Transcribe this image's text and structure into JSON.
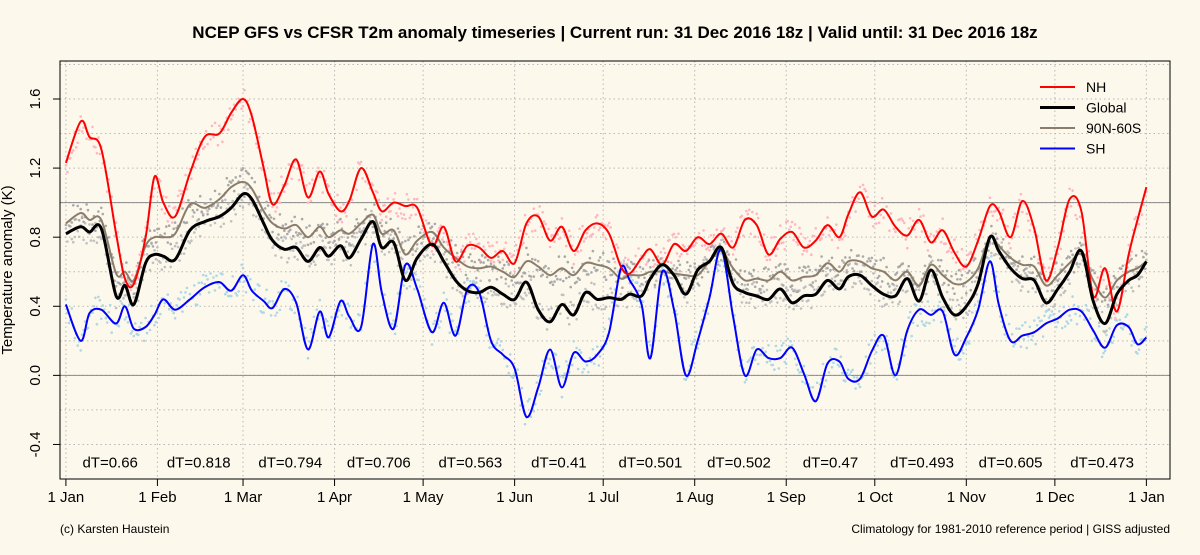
{
  "chart_data": {
    "type": "line",
    "title": "NCEP GFS vs CFSR T2m anomaly timeseries | Current run: 31 Dec 2016 18z | Valid until: 31 Dec 2016 18z",
    "ylabel": "Temperature anomaly (K)",
    "xlabel": "",
    "x_unit": "day of year 2016 (day 0 = 1 Jan 2016, day 366 = 1 Jan 2017)",
    "xlim": [
      -2,
      374
    ],
    "ylim": [
      -0.6,
      1.82
    ],
    "x_ticks": [
      {
        "day": 0,
        "label": "1 Jan"
      },
      {
        "day": 31,
        "label": "1 Feb"
      },
      {
        "day": 60,
        "label": "1 Mar"
      },
      {
        "day": 91,
        "label": "1 Apr"
      },
      {
        "day": 121,
        "label": "1 May"
      },
      {
        "day": 152,
        "label": "1 Jun"
      },
      {
        "day": 182,
        "label": "1 Jul"
      },
      {
        "day": 213,
        "label": "1 Aug"
      },
      {
        "day": 244,
        "label": "1 Sep"
      },
      {
        "day": 274,
        "label": "1 Oct"
      },
      {
        "day": 305,
        "label": "1 Nov"
      },
      {
        "day": 335,
        "label": "1 Dec"
      },
      {
        "day": 366,
        "label": "1 Jan"
      }
    ],
    "y_ticks": [
      {
        "value": -0.4,
        "label": "-0.4"
      },
      {
        "value": 0.0,
        "label": "0.0"
      },
      {
        "value": 0.4,
        "label": "0.4"
      },
      {
        "value": 0.8,
        "label": "0.8"
      },
      {
        "value": 1.2,
        "label": "1.2"
      },
      {
        "value": 1.6,
        "label": "1.6"
      }
    ],
    "grid": true,
    "reference_lines": [
      0.0,
      1.0
    ],
    "legend_position": "top-right",
    "series": [
      {
        "name": "NH",
        "color": "#ff0000",
        "dot_color": "#ffb6c1",
        "x": [
          0,
          5,
          8,
          12,
          17,
          20,
          23,
          27,
          30,
          33,
          37,
          42,
          47,
          52,
          56,
          60,
          63,
          67,
          70,
          74,
          78,
          82,
          86,
          89,
          93,
          96,
          100,
          104,
          107,
          111,
          115,
          119,
          124,
          128,
          132,
          136,
          140,
          144,
          148,
          152,
          156,
          160,
          164,
          168,
          172,
          176,
          180,
          184,
          188,
          191,
          195,
          198,
          202,
          206,
          210,
          214,
          218,
          222,
          226,
          230,
          234,
          238,
          242,
          246,
          250,
          254,
          258,
          262,
          265,
          269,
          273,
          277,
          281,
          285,
          289,
          293,
          297,
          301,
          305,
          309,
          313,
          316,
          320,
          324,
          328,
          332,
          336,
          340,
          344,
          348,
          352,
          356,
          360,
          363,
          366
        ],
        "y": [
          1.23,
          1.47,
          1.38,
          1.31,
          0.82,
          0.56,
          0.53,
          0.8,
          1.15,
          1.0,
          0.92,
          1.17,
          1.38,
          1.4,
          1.52,
          1.6,
          1.5,
          1.2,
          0.99,
          1.1,
          1.25,
          1.03,
          1.18,
          1.05,
          0.95,
          1.01,
          1.2,
          1.06,
          0.95,
          1.0,
          0.98,
          0.97,
          0.75,
          0.86,
          0.66,
          0.75,
          0.74,
          0.68,
          0.72,
          0.65,
          0.88,
          0.92,
          0.78,
          0.86,
          0.72,
          0.84,
          0.88,
          0.82,
          0.63,
          0.59,
          0.68,
          0.73,
          0.64,
          0.76,
          0.72,
          0.8,
          0.76,
          0.82,
          0.74,
          0.9,
          0.87,
          0.7,
          0.79,
          0.83,
          0.74,
          0.78,
          0.87,
          0.8,
          0.93,
          1.06,
          0.92,
          0.96,
          0.86,
          0.81,
          0.9,
          0.77,
          0.84,
          0.71,
          0.63,
          0.78,
          0.98,
          0.95,
          0.8,
          1.01,
          0.85,
          0.55,
          0.74,
          1.02,
          0.95,
          0.46,
          0.62,
          0.37,
          0.7,
          0.9,
          1.09
        ]
      },
      {
        "name": "Global",
        "color": "#000000",
        "dot_color": "#c0c0c0",
        "x": [
          0,
          5,
          8,
          12,
          17,
          20,
          23,
          27,
          30,
          33,
          37,
          42,
          47,
          52,
          56,
          60,
          63,
          67,
          70,
          74,
          78,
          82,
          86,
          89,
          93,
          96,
          100,
          104,
          107,
          111,
          115,
          119,
          124,
          128,
          132,
          136,
          140,
          144,
          148,
          152,
          156,
          160,
          164,
          168,
          172,
          176,
          180,
          184,
          188,
          191,
          195,
          198,
          202,
          206,
          210,
          214,
          218,
          222,
          226,
          230,
          234,
          238,
          242,
          246,
          250,
          254,
          258,
          262,
          265,
          269,
          273,
          277,
          281,
          285,
          289,
          293,
          297,
          301,
          305,
          309,
          313,
          316,
          320,
          324,
          328,
          332,
          336,
          340,
          344,
          348,
          352,
          356,
          360,
          363,
          366
        ],
        "y": [
          0.82,
          0.86,
          0.83,
          0.85,
          0.46,
          0.52,
          0.41,
          0.65,
          0.7,
          0.69,
          0.67,
          0.84,
          0.89,
          0.92,
          0.97,
          1.05,
          1.02,
          0.88,
          0.78,
          0.73,
          0.74,
          0.66,
          0.74,
          0.69,
          0.75,
          0.68,
          0.79,
          0.89,
          0.74,
          0.77,
          0.55,
          0.68,
          0.76,
          0.66,
          0.55,
          0.49,
          0.48,
          0.51,
          0.47,
          0.44,
          0.54,
          0.38,
          0.31,
          0.41,
          0.35,
          0.48,
          0.44,
          0.45,
          0.44,
          0.47,
          0.46,
          0.56,
          0.64,
          0.58,
          0.47,
          0.61,
          0.66,
          0.74,
          0.53,
          0.48,
          0.46,
          0.44,
          0.5,
          0.42,
          0.46,
          0.47,
          0.55,
          0.5,
          0.57,
          0.58,
          0.52,
          0.47,
          0.46,
          0.56,
          0.43,
          0.61,
          0.45,
          0.35,
          0.4,
          0.53,
          0.8,
          0.72,
          0.62,
          0.56,
          0.55,
          0.42,
          0.5,
          0.6,
          0.72,
          0.43,
          0.3,
          0.47,
          0.55,
          0.58,
          0.66
        ]
      },
      {
        "name": "90N-60S",
        "color": "#8b7d6b",
        "dot_color": "#a9a9a9",
        "x": [
          0,
          5,
          8,
          12,
          17,
          20,
          23,
          27,
          30,
          33,
          37,
          42,
          47,
          52,
          56,
          60,
          63,
          67,
          70,
          74,
          78,
          82,
          86,
          89,
          93,
          96,
          100,
          104,
          107,
          111,
          115,
          119,
          124,
          128,
          132,
          136,
          140,
          144,
          148,
          152,
          156,
          160,
          164,
          168,
          172,
          176,
          180,
          184,
          188,
          191,
          195,
          198,
          202,
          206,
          210,
          214,
          218,
          222,
          226,
          230,
          234,
          238,
          242,
          246,
          250,
          254,
          258,
          262,
          265,
          269,
          273,
          277,
          281,
          285,
          289,
          293,
          297,
          301,
          305,
          309,
          313,
          316,
          320,
          324,
          328,
          332,
          336,
          340,
          344,
          348,
          352,
          356,
          360,
          363,
          366
        ],
        "y": [
          0.88,
          0.94,
          0.9,
          0.9,
          0.59,
          0.6,
          0.55,
          0.75,
          0.8,
          0.8,
          0.82,
          0.99,
          0.97,
          1.02,
          1.09,
          1.12,
          1.08,
          0.95,
          0.88,
          0.85,
          0.87,
          0.8,
          0.86,
          0.8,
          0.84,
          0.82,
          0.88,
          0.93,
          0.82,
          0.84,
          0.7,
          0.78,
          0.83,
          0.74,
          0.68,
          0.63,
          0.62,
          0.63,
          0.6,
          0.57,
          0.66,
          0.63,
          0.58,
          0.62,
          0.58,
          0.65,
          0.64,
          0.62,
          0.56,
          0.58,
          0.58,
          0.6,
          0.6,
          0.59,
          0.58,
          0.58,
          0.66,
          0.72,
          0.62,
          0.55,
          0.56,
          0.55,
          0.6,
          0.55,
          0.57,
          0.58,
          0.65,
          0.6,
          0.66,
          0.66,
          0.62,
          0.6,
          0.55,
          0.6,
          0.52,
          0.64,
          0.58,
          0.53,
          0.54,
          0.62,
          0.8,
          0.75,
          0.68,
          0.64,
          0.63,
          0.52,
          0.58,
          0.65,
          0.7,
          0.55,
          0.45,
          0.55,
          0.6,
          0.62,
          0.66
        ]
      },
      {
        "name": "SH",
        "color": "#0000ff",
        "dot_color": "#add8e6",
        "x": [
          0,
          5,
          8,
          12,
          17,
          20,
          23,
          27,
          30,
          33,
          37,
          42,
          47,
          52,
          56,
          60,
          63,
          67,
          70,
          74,
          78,
          82,
          86,
          89,
          93,
          96,
          100,
          104,
          107,
          111,
          115,
          119,
          124,
          128,
          132,
          136,
          140,
          144,
          148,
          152,
          156,
          160,
          164,
          168,
          172,
          176,
          180,
          184,
          188,
          191,
          195,
          198,
          202,
          206,
          210,
          214,
          218,
          222,
          226,
          230,
          234,
          238,
          242,
          246,
          250,
          254,
          258,
          262,
          265,
          269,
          273,
          277,
          281,
          285,
          289,
          293,
          297,
          301,
          305,
          309,
          313,
          316,
          320,
          324,
          328,
          332,
          336,
          340,
          344,
          348,
          352,
          356,
          360,
          363,
          366
        ],
        "y": [
          0.41,
          0.2,
          0.36,
          0.38,
          0.3,
          0.4,
          0.27,
          0.28,
          0.35,
          0.44,
          0.38,
          0.44,
          0.51,
          0.54,
          0.49,
          0.58,
          0.49,
          0.43,
          0.39,
          0.5,
          0.42,
          0.15,
          0.37,
          0.22,
          0.43,
          0.34,
          0.28,
          0.76,
          0.48,
          0.27,
          0.64,
          0.5,
          0.25,
          0.42,
          0.23,
          0.5,
          0.48,
          0.2,
          0.12,
          0.04,
          -0.24,
          -0.07,
          0.15,
          -0.07,
          0.13,
          0.08,
          0.12,
          0.25,
          0.62,
          0.55,
          0.41,
          0.1,
          0.6,
          0.38,
          0.0,
          0.2,
          0.45,
          0.73,
          0.34,
          0.0,
          0.15,
          0.1,
          0.1,
          0.16,
          0.01,
          -0.15,
          0.07,
          0.08,
          -0.02,
          -0.02,
          0.14,
          0.23,
          0.0,
          0.26,
          0.38,
          0.35,
          0.37,
          0.12,
          0.22,
          0.38,
          0.66,
          0.41,
          0.2,
          0.23,
          0.25,
          0.3,
          0.33,
          0.38,
          0.37,
          0.26,
          0.16,
          0.29,
          0.28,
          0.18,
          0.22
        ]
      }
    ],
    "annotations": [
      {
        "x": 15,
        "text": "dT=0.66"
      },
      {
        "x": 45,
        "text": "dT=0.818"
      },
      {
        "x": 76,
        "text": "dT=0.794"
      },
      {
        "x": 106,
        "text": "dT=0.706"
      },
      {
        "x": 137,
        "text": "dT=0.563"
      },
      {
        "x": 167,
        "text": "dT=0.41"
      },
      {
        "x": 198,
        "text": "dT=0.501"
      },
      {
        "x": 228,
        "text": "dT=0.502"
      },
      {
        "x": 259,
        "text": "dT=0.47"
      },
      {
        "x": 290,
        "text": "dT=0.493"
      },
      {
        "x": 320,
        "text": "dT=0.605"
      },
      {
        "x": 351,
        "text": "dT=0.473"
      }
    ],
    "annotation_y": -0.5,
    "footer_left": "(c) Karsten Haustein",
    "footer_right": "Climatology for 1981-2010 reference period | GISS adjusted"
  }
}
